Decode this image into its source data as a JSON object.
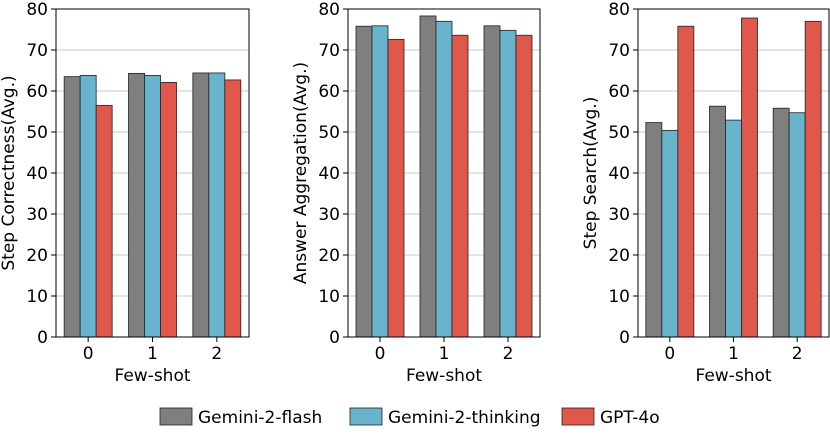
{
  "colors": {
    "Gemini-2-flash": "#7f7f7f",
    "Gemini-2-thinking": "#6ab3cd",
    "GPT-4o": "#e0584c",
    "grid": "#c8c8c8",
    "edge": "#222222"
  },
  "legend": {
    "position": "bottom-center",
    "items": [
      "Gemini-2-flash",
      "Gemini-2-thinking",
      "GPT-4o"
    ]
  },
  "chart_data": [
    {
      "type": "bar",
      "xlabel": "Few-shot",
      "ylabel": "Step Correctness(Avg.)",
      "categories": [
        "0",
        "1",
        "2"
      ],
      "ylim": [
        0,
        80
      ],
      "yticks": [
        0,
        10,
        20,
        30,
        40,
        50,
        60,
        70,
        80
      ],
      "grid": "horizontal",
      "series": [
        {
          "name": "Gemini-2-flash",
          "values": [
            63.5,
            64.3,
            64.4
          ]
        },
        {
          "name": "Gemini-2-thinking",
          "values": [
            63.8,
            63.8,
            64.4
          ]
        },
        {
          "name": "GPT-4o",
          "values": [
            56.5,
            62.1,
            62.7
          ]
        }
      ]
    },
    {
      "type": "bar",
      "xlabel": "Few-shot",
      "ylabel": "Answer Aggregation(Avg.)",
      "categories": [
        "0",
        "1",
        "2"
      ],
      "ylim": [
        0,
        80
      ],
      "yticks": [
        0,
        10,
        20,
        30,
        40,
        50,
        60,
        70,
        80
      ],
      "grid": "horizontal",
      "series": [
        {
          "name": "Gemini-2-flash",
          "values": [
            75.8,
            78.3,
            75.9
          ]
        },
        {
          "name": "Gemini-2-thinking",
          "values": [
            75.9,
            77.0,
            74.8
          ]
        },
        {
          "name": "GPT-4o",
          "values": [
            72.6,
            73.6,
            73.6
          ]
        }
      ]
    },
    {
      "type": "bar",
      "xlabel": "Few-shot",
      "ylabel": "Step Search(Avg.)",
      "categories": [
        "0",
        "1",
        "2"
      ],
      "ylim": [
        0,
        80
      ],
      "yticks": [
        0,
        10,
        20,
        30,
        40,
        50,
        60,
        70,
        80
      ],
      "grid": "horizontal",
      "series": [
        {
          "name": "Gemini-2-flash",
          "values": [
            52.3,
            56.3,
            55.8
          ]
        },
        {
          "name": "Gemini-2-thinking",
          "values": [
            50.4,
            52.9,
            54.7
          ]
        },
        {
          "name": "GPT-4o",
          "values": [
            75.8,
            77.8,
            77.0
          ]
        }
      ]
    }
  ]
}
